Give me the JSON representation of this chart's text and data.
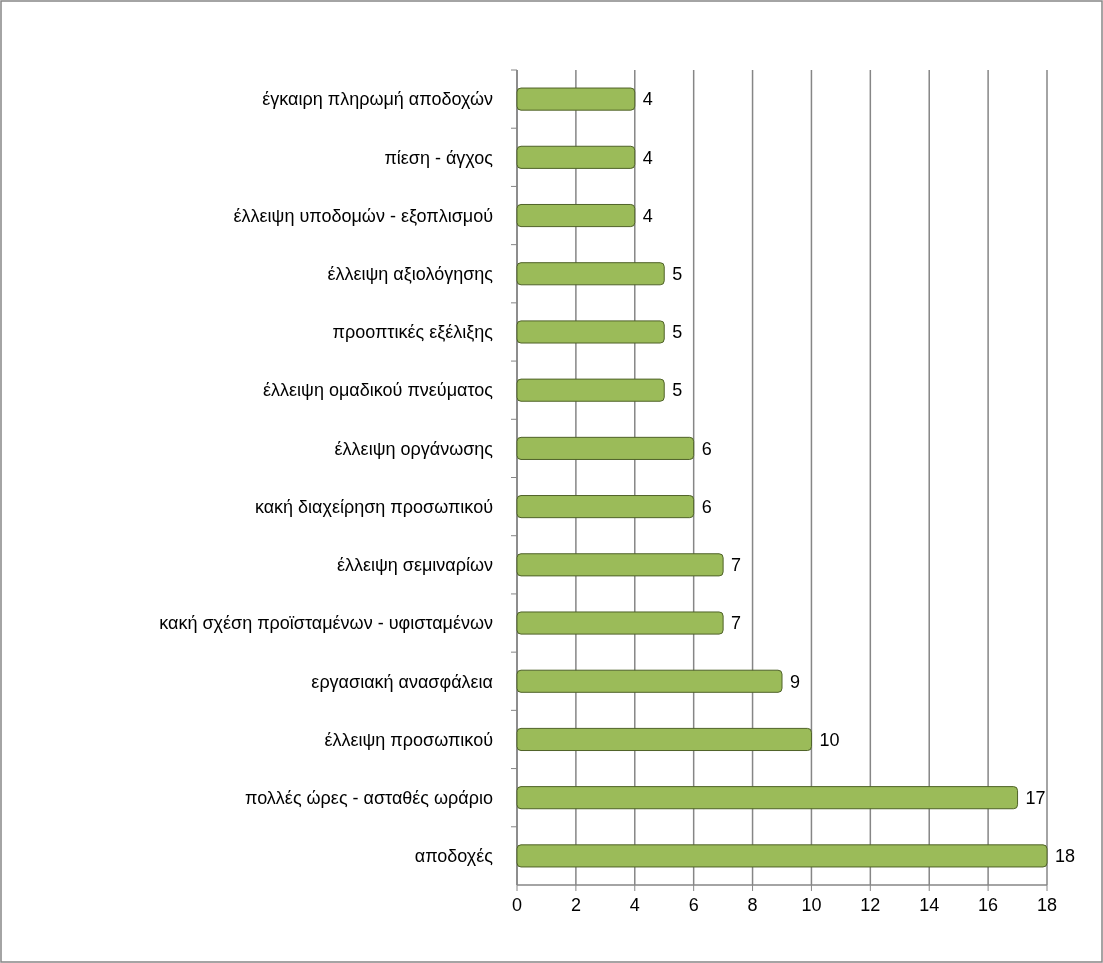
{
  "chart_data": {
    "type": "bar",
    "orientation": "horizontal",
    "categories": [
      "έγκαιρη πληρωμή αποδοχών",
      "πίεση - άγχος",
      "έλλειψη υποδομών - εξοπλισμού",
      "έλλειψη αξιολόγησης",
      "προοπτικές εξέλιξης",
      "έλλειψη ομαδικού πνεύματος",
      "έλλειψη οργάνωσης",
      "κακή διαχείρηση προσωπικού",
      "έλλειψη σεμιναρίων",
      "κακή σχέση προϊσταμένων - υφισταμένων",
      "εργασιακή ανασφάλεια",
      "έλλειψη προσωπικού",
      "πολλές ώρες - ασταθές ωράριο",
      "αποδοχές"
    ],
    "values": [
      4,
      4,
      4,
      5,
      5,
      5,
      6,
      6,
      7,
      7,
      9,
      10,
      17,
      18
    ],
    "color": "#9bbb59",
    "data_labels": true,
    "grid": "x",
    "xlim": [
      0,
      18
    ],
    "xticks": [
      0,
      2,
      4,
      6,
      8,
      10,
      12,
      14,
      16,
      18
    ]
  }
}
